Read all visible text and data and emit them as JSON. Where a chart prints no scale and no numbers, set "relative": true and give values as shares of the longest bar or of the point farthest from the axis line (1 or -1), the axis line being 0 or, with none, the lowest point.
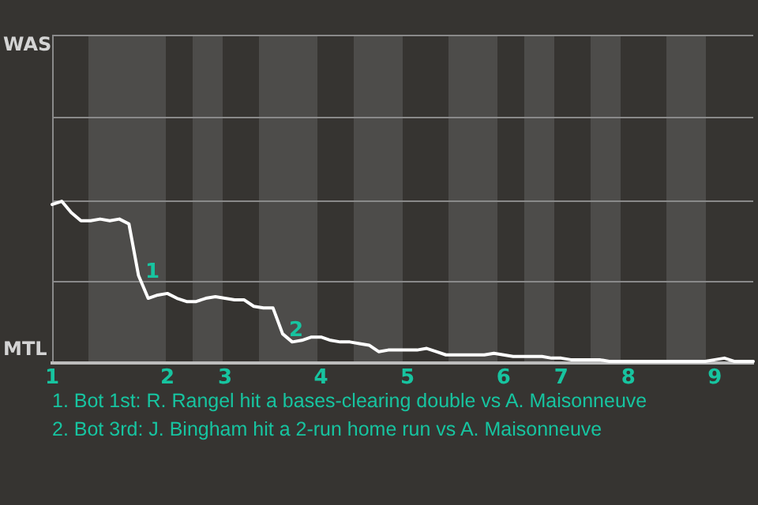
{
  "chart_data": {
    "type": "line",
    "relative": true,
    "categories": [
      "1",
      null,
      null,
      null,
      null,
      null,
      null,
      null,
      null,
      null,
      null,
      null,
      "2",
      null,
      null,
      null,
      null,
      null,
      "3",
      null,
      null,
      null,
      null,
      null,
      null,
      null,
      null,
      null,
      "4",
      null,
      null,
      null,
      null,
      null,
      null,
      null,
      null,
      "5",
      null,
      null,
      null,
      null,
      null,
      null,
      null,
      null,
      null,
      "6",
      null,
      null,
      null,
      null,
      null,
      "7",
      null,
      null,
      null,
      null,
      null,
      null,
      "8",
      null,
      null,
      null,
      null,
      null,
      null,
      null,
      null,
      "9",
      null,
      null,
      null,
      null
    ],
    "series": [
      {
        "color": "#ffffff",
        "values": [
          0.98,
          1,
          0.93,
          0.88,
          0.88,
          0.89,
          0.88,
          0.89,
          0.86,
          0.54,
          0.4,
          0.42,
          0.43,
          0.4,
          0.38,
          0.38,
          0.4,
          0.41,
          0.4,
          0.39,
          0.39,
          0.35,
          0.34,
          0.34,
          0.18,
          0.13,
          0.14,
          0.16,
          0.16,
          0.14,
          0.13,
          0.13,
          0.12,
          0.11,
          0.07,
          0.08,
          0.08,
          0.08,
          0.08,
          0.09,
          0.07,
          0.05,
          0.05,
          0.05,
          0.05,
          0.05,
          0.06,
          0.05,
          0.04,
          0.04,
          0.04,
          0.04,
          0.03,
          0.03,
          0.02,
          0.02,
          0.02,
          0.02,
          0.01,
          0.01,
          0.01,
          0.01,
          0.01,
          0.01,
          0.01,
          0.01,
          0.01,
          0.01,
          0.01,
          0.02,
          0.03,
          0.01,
          0.01,
          0.01
        ]
      }
    ],
    "ref_lines": [
      {
        "axis": "y",
        "value": 0.51,
        "color": "#8a8a8a"
      },
      {
        "axis": "y",
        "value": 1.01,
        "color": "#8a8a8a"
      },
      {
        "axis": "y",
        "value": 1.52,
        "color": "#8a8a8a"
      }
    ],
    "marker": "none",
    "line_style": "solid",
    "annotations": [
      "WAS",
      "MTL",
      "1",
      "2",
      "1. Bot 1st: R. Rangel hit a bases-clearing double vs A. Maisonneuve",
      "2. Bot 3rd: J. Bingham hit a 2-run home run vs A. Maisonneuve"
    ]
  }
}
